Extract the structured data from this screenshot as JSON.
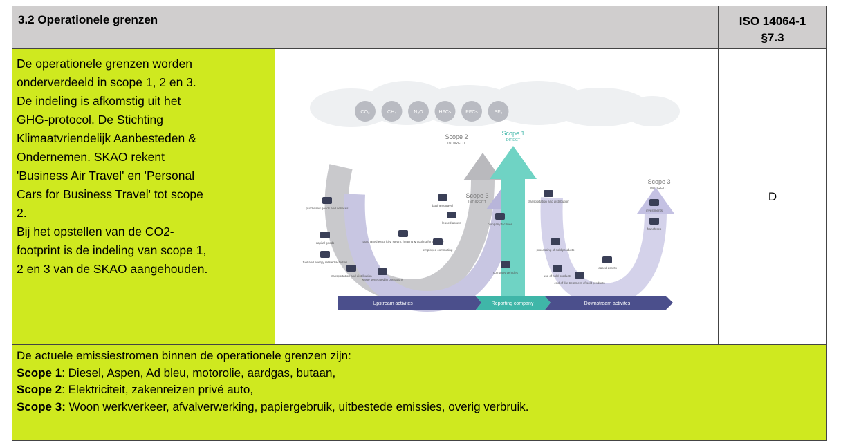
{
  "header": {
    "title": "3.2 Operationele grenzen",
    "reference": [
      "ISO 14064-1",
      "§7.3"
    ]
  },
  "body": {
    "lines": [
      "De operationele grenzen worden",
      "onderverdeeld in scope 1, 2 en 3.",
      "De indeling is afkomstig uit het",
      "GHG-protocol. De Stichting",
      "Klimaatvriendelijk Aanbesteden &",
      "Ondernemen. SKAO rekent",
      "'Business Air Travel' en 'Personal",
      "Cars for Business Travel' tot scope",
      "2.",
      "Bij het opstellen van de CO2-",
      "footprint is de indeling van scope 1,",
      "2 en 3 van de SKAO aangehouden."
    ],
    "grade": "D"
  },
  "diagram": {
    "gases": [
      "CO₂",
      "CH₄",
      "N₂O",
      "HFCs",
      "PFCs",
      "SF₆"
    ],
    "scopes": [
      {
        "name": "Scope 2",
        "kind": "INDIRECT"
      },
      {
        "name": "Scope 1",
        "kind": "DIRECT"
      },
      {
        "name": "Scope 3",
        "kind": "INDIRECT"
      },
      {
        "name": "Scope 3",
        "kind": "INDIRECT"
      }
    ],
    "bar": [
      "Upstream activites",
      "Reporting company",
      "Downstream activites"
    ],
    "items": [
      "purchased goods and services",
      "capital goods",
      "fuel and energy related activities",
      "transportation and distribution",
      "waste generated in operations",
      "purchased electricity, steam, heating & cooling for own use",
      "business travel",
      "employee commuting",
      "leased assets",
      "company facilities",
      "company vehicles",
      "transportation and distribution",
      "processing of sold products",
      "use of sold products",
      "end-of-life treatment of sold products",
      "leased assets",
      "franchises",
      "investments"
    ]
  },
  "footer": {
    "intro": "De actuele emissiestromen binnen de operationele grenzen zijn:",
    "scopes": [
      {
        "label": "Scope 1",
        "text": ": Diesel, Aspen, Ad bleu, motorolie, aardgas, butaan,"
      },
      {
        "label": "Scope 2",
        "text": ": Elektriciteit, zakenreizen privé auto,"
      },
      {
        "label": "Scope 3:",
        "text": " Woon werkverkeer, afvalverwerking, papiergebruik, uitbestede emissies, overig verbruik."
      }
    ]
  }
}
